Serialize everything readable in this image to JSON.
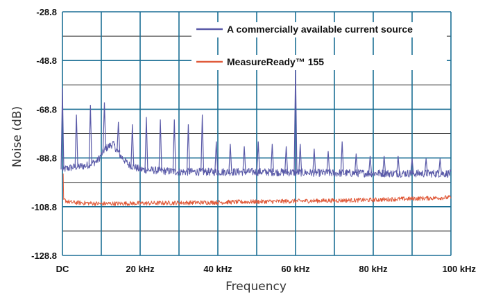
{
  "chart_data": {
    "type": "line",
    "xlabel": "Frequency",
    "ylabel": "Noise (dB)",
    "xlim": [
      0,
      100
    ],
    "ylim": [
      -128.8,
      -28.8
    ],
    "x_unit": "kHz",
    "x_ticks": [
      {
        "value": 0,
        "label": "DC"
      },
      {
        "value": 20,
        "label": "20 kHz"
      },
      {
        "value": 40,
        "label": "40 kHz"
      },
      {
        "value": 60,
        "label": "60 kHz"
      },
      {
        "value": 80,
        "label": "80 kHz"
      },
      {
        "value": 100,
        "label": "100 kHz"
      }
    ],
    "y_ticks": [
      {
        "value": -28.8,
        "label": "-28.8"
      },
      {
        "value": -48.8,
        "label": "-48.8"
      },
      {
        "value": -68.8,
        "label": "-68.8"
      },
      {
        "value": -88.8,
        "label": "-88.8"
      },
      {
        "value": -108.8,
        "label": "-108.8"
      },
      {
        "value": -128.8,
        "label": "-128.8"
      }
    ],
    "grid": true,
    "legend_position": "top-right",
    "series": [
      {
        "name": "A commercially available current source",
        "color": "#5a5aa8",
        "baseline": [
          [
            0,
            -93.5
          ],
          [
            3,
            -92.5
          ],
          [
            6,
            -92
          ],
          [
            9,
            -90
          ],
          [
            11,
            -85
          ],
          [
            13,
            -83
          ],
          [
            15,
            -88
          ],
          [
            17,
            -91.5
          ],
          [
            20,
            -93.5
          ],
          [
            30,
            -94.5
          ],
          [
            50,
            -94.5
          ],
          [
            70,
            -95
          ],
          [
            100,
            -95.2
          ]
        ],
        "peaks": [
          [
            0,
            -60
          ],
          [
            3.6,
            -71
          ],
          [
            7.2,
            -67
          ],
          [
            10.8,
            -66
          ],
          [
            14.4,
            -74
          ],
          [
            18,
            -75
          ],
          [
            21.6,
            -72
          ],
          [
            25.2,
            -73
          ],
          [
            28.8,
            -73
          ],
          [
            32.4,
            -75
          ],
          [
            36,
            -71
          ],
          [
            39.6,
            -82
          ],
          [
            43.2,
            -83
          ],
          [
            46.8,
            -84
          ],
          [
            50.4,
            -82
          ],
          [
            54,
            -83
          ],
          [
            57.6,
            -84
          ],
          [
            60,
            -51
          ],
          [
            61.2,
            -83
          ],
          [
            64.8,
            -85
          ],
          [
            68.4,
            -86
          ],
          [
            72,
            -82
          ],
          [
            75.6,
            -87
          ],
          [
            79.2,
            -88
          ],
          [
            82.8,
            -88
          ],
          [
            86.4,
            -88
          ],
          [
            90,
            -89
          ],
          [
            93.6,
            -89
          ],
          [
            97.2,
            -89
          ]
        ]
      },
      {
        "name": "MeasureReady™ 155",
        "color": "#e05a3a",
        "baseline": [
          [
            0.2,
            -96
          ],
          [
            0.3,
            -106
          ],
          [
            2,
            -107
          ],
          [
            10,
            -107.6
          ],
          [
            20,
            -107.4
          ],
          [
            40,
            -107
          ],
          [
            60,
            -106.5
          ],
          [
            80,
            -106
          ],
          [
            100,
            -105
          ]
        ],
        "peaks": []
      }
    ]
  }
}
